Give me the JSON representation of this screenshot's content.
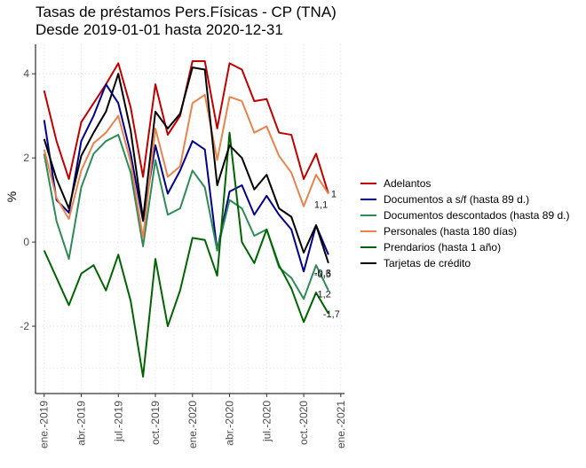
{
  "chart_data": {
    "type": "line",
    "title": "Tasas de préstamos Pers.Físicas - CP (TNA)",
    "subtitle": "Desde 2019-01-01 hasta 2020-12-31",
    "xlabel": "",
    "ylabel": "%",
    "ylim": [
      -3.6,
      4.7
    ],
    "yticks": [
      -2,
      0,
      2,
      4
    ],
    "grid": "dotted",
    "legend_position": "right",
    "x": [
      "2019-01",
      "2019-02",
      "2019-03",
      "2019-04",
      "2019-05",
      "2019-06",
      "2019-07",
      "2019-08",
      "2019-09",
      "2019-10",
      "2019-11",
      "2019-12",
      "2020-01",
      "2020-02",
      "2020-03",
      "2020-04",
      "2020-05",
      "2020-06",
      "2020-07",
      "2020-08",
      "2020-09",
      "2020-10",
      "2020-11",
      "2020-12"
    ],
    "xticks": [
      {
        "date": "2019-01",
        "label": "ene.-2019"
      },
      {
        "date": "2019-04",
        "label": "abr.-2019"
      },
      {
        "date": "2019-07",
        "label": "jul.-2019"
      },
      {
        "date": "2019-10",
        "label": "oct.-2019"
      },
      {
        "date": "2020-01",
        "label": "ene.-2020"
      },
      {
        "date": "2020-04",
        "label": "abr.-2020"
      },
      {
        "date": "2020-07",
        "label": "jul.-2020"
      },
      {
        "date": "2020-10",
        "label": "oct.-2020"
      },
      {
        "date": "2021-01",
        "label": "ene.-2021"
      }
    ],
    "series": [
      {
        "name": "Adelantos",
        "color": "#c00000",
        "end_label": "1",
        "values": [
          3.6,
          2.4,
          1.5,
          2.85,
          3.3,
          3.75,
          4.25,
          3.2,
          1.55,
          3.75,
          2.55,
          3.0,
          4.3,
          4.3,
          2.7,
          4.25,
          4.1,
          3.35,
          3.4,
          2.6,
          2.55,
          1.5,
          2.1,
          1.15
        ]
      },
      {
        "name": "Documentos a s/f (hasta 89 d.)",
        "color": "#00008b",
        "end_label": "-0,3",
        "values": [
          2.9,
          1.0,
          0.7,
          2.4,
          3.0,
          3.75,
          3.3,
          2.1,
          0.5,
          2.3,
          1.15,
          1.7,
          2.4,
          2.2,
          -0.2,
          1.2,
          1.35,
          0.65,
          1.1,
          0.65,
          0.3,
          -0.7,
          0.4,
          -0.3
        ]
      },
      {
        "name": "Documentos descontados (hasta 89 d.)",
        "color": "#2e8b57",
        "end_label": "-1,2",
        "values": [
          2.1,
          0.5,
          -0.4,
          1.3,
          2.1,
          2.4,
          2.55,
          1.65,
          -0.1,
          1.95,
          0.65,
          0.8,
          1.7,
          1.3,
          -0.2,
          1.0,
          0.8,
          0.15,
          0.3,
          -0.6,
          -0.85,
          -1.35,
          -0.55,
          -1.15
        ]
      },
      {
        "name": "Personales (hasta 180 días)",
        "color": "#e9834d",
        "end_label": "1,1",
        "values": [
          2.2,
          1.05,
          0.55,
          1.7,
          2.35,
          2.6,
          3.0,
          1.9,
          0.1,
          2.7,
          1.55,
          1.8,
          3.3,
          3.5,
          1.95,
          3.45,
          3.35,
          2.6,
          2.75,
          2.05,
          1.65,
          0.85,
          1.6,
          1.15
        ]
      },
      {
        "name": "Prendarios (hasta 1 año)",
        "color": "#006400",
        "end_label": "-1,7",
        "values": [
          -0.2,
          -0.85,
          -1.5,
          -0.75,
          -0.55,
          -1.15,
          -0.3,
          -1.4,
          -3.2,
          -0.4,
          -2.0,
          -1.15,
          0.1,
          0.05,
          -0.8,
          2.6,
          0.0,
          -0.5,
          0.3,
          -0.55,
          -1.1,
          -1.9,
          -1.2,
          -1.7
        ]
      },
      {
        "name": "Tarjetas de crédito",
        "color": "#000000",
        "end_label": "-0,5",
        "values": [
          2.45,
          1.5,
          0.8,
          2.05,
          2.6,
          3.1,
          4.0,
          2.65,
          0.55,
          3.1,
          2.7,
          3.05,
          4.15,
          4.1,
          1.35,
          2.3,
          2.0,
          1.25,
          1.6,
          0.8,
          0.6,
          -0.25,
          0.4,
          -0.5
        ]
      }
    ]
  }
}
